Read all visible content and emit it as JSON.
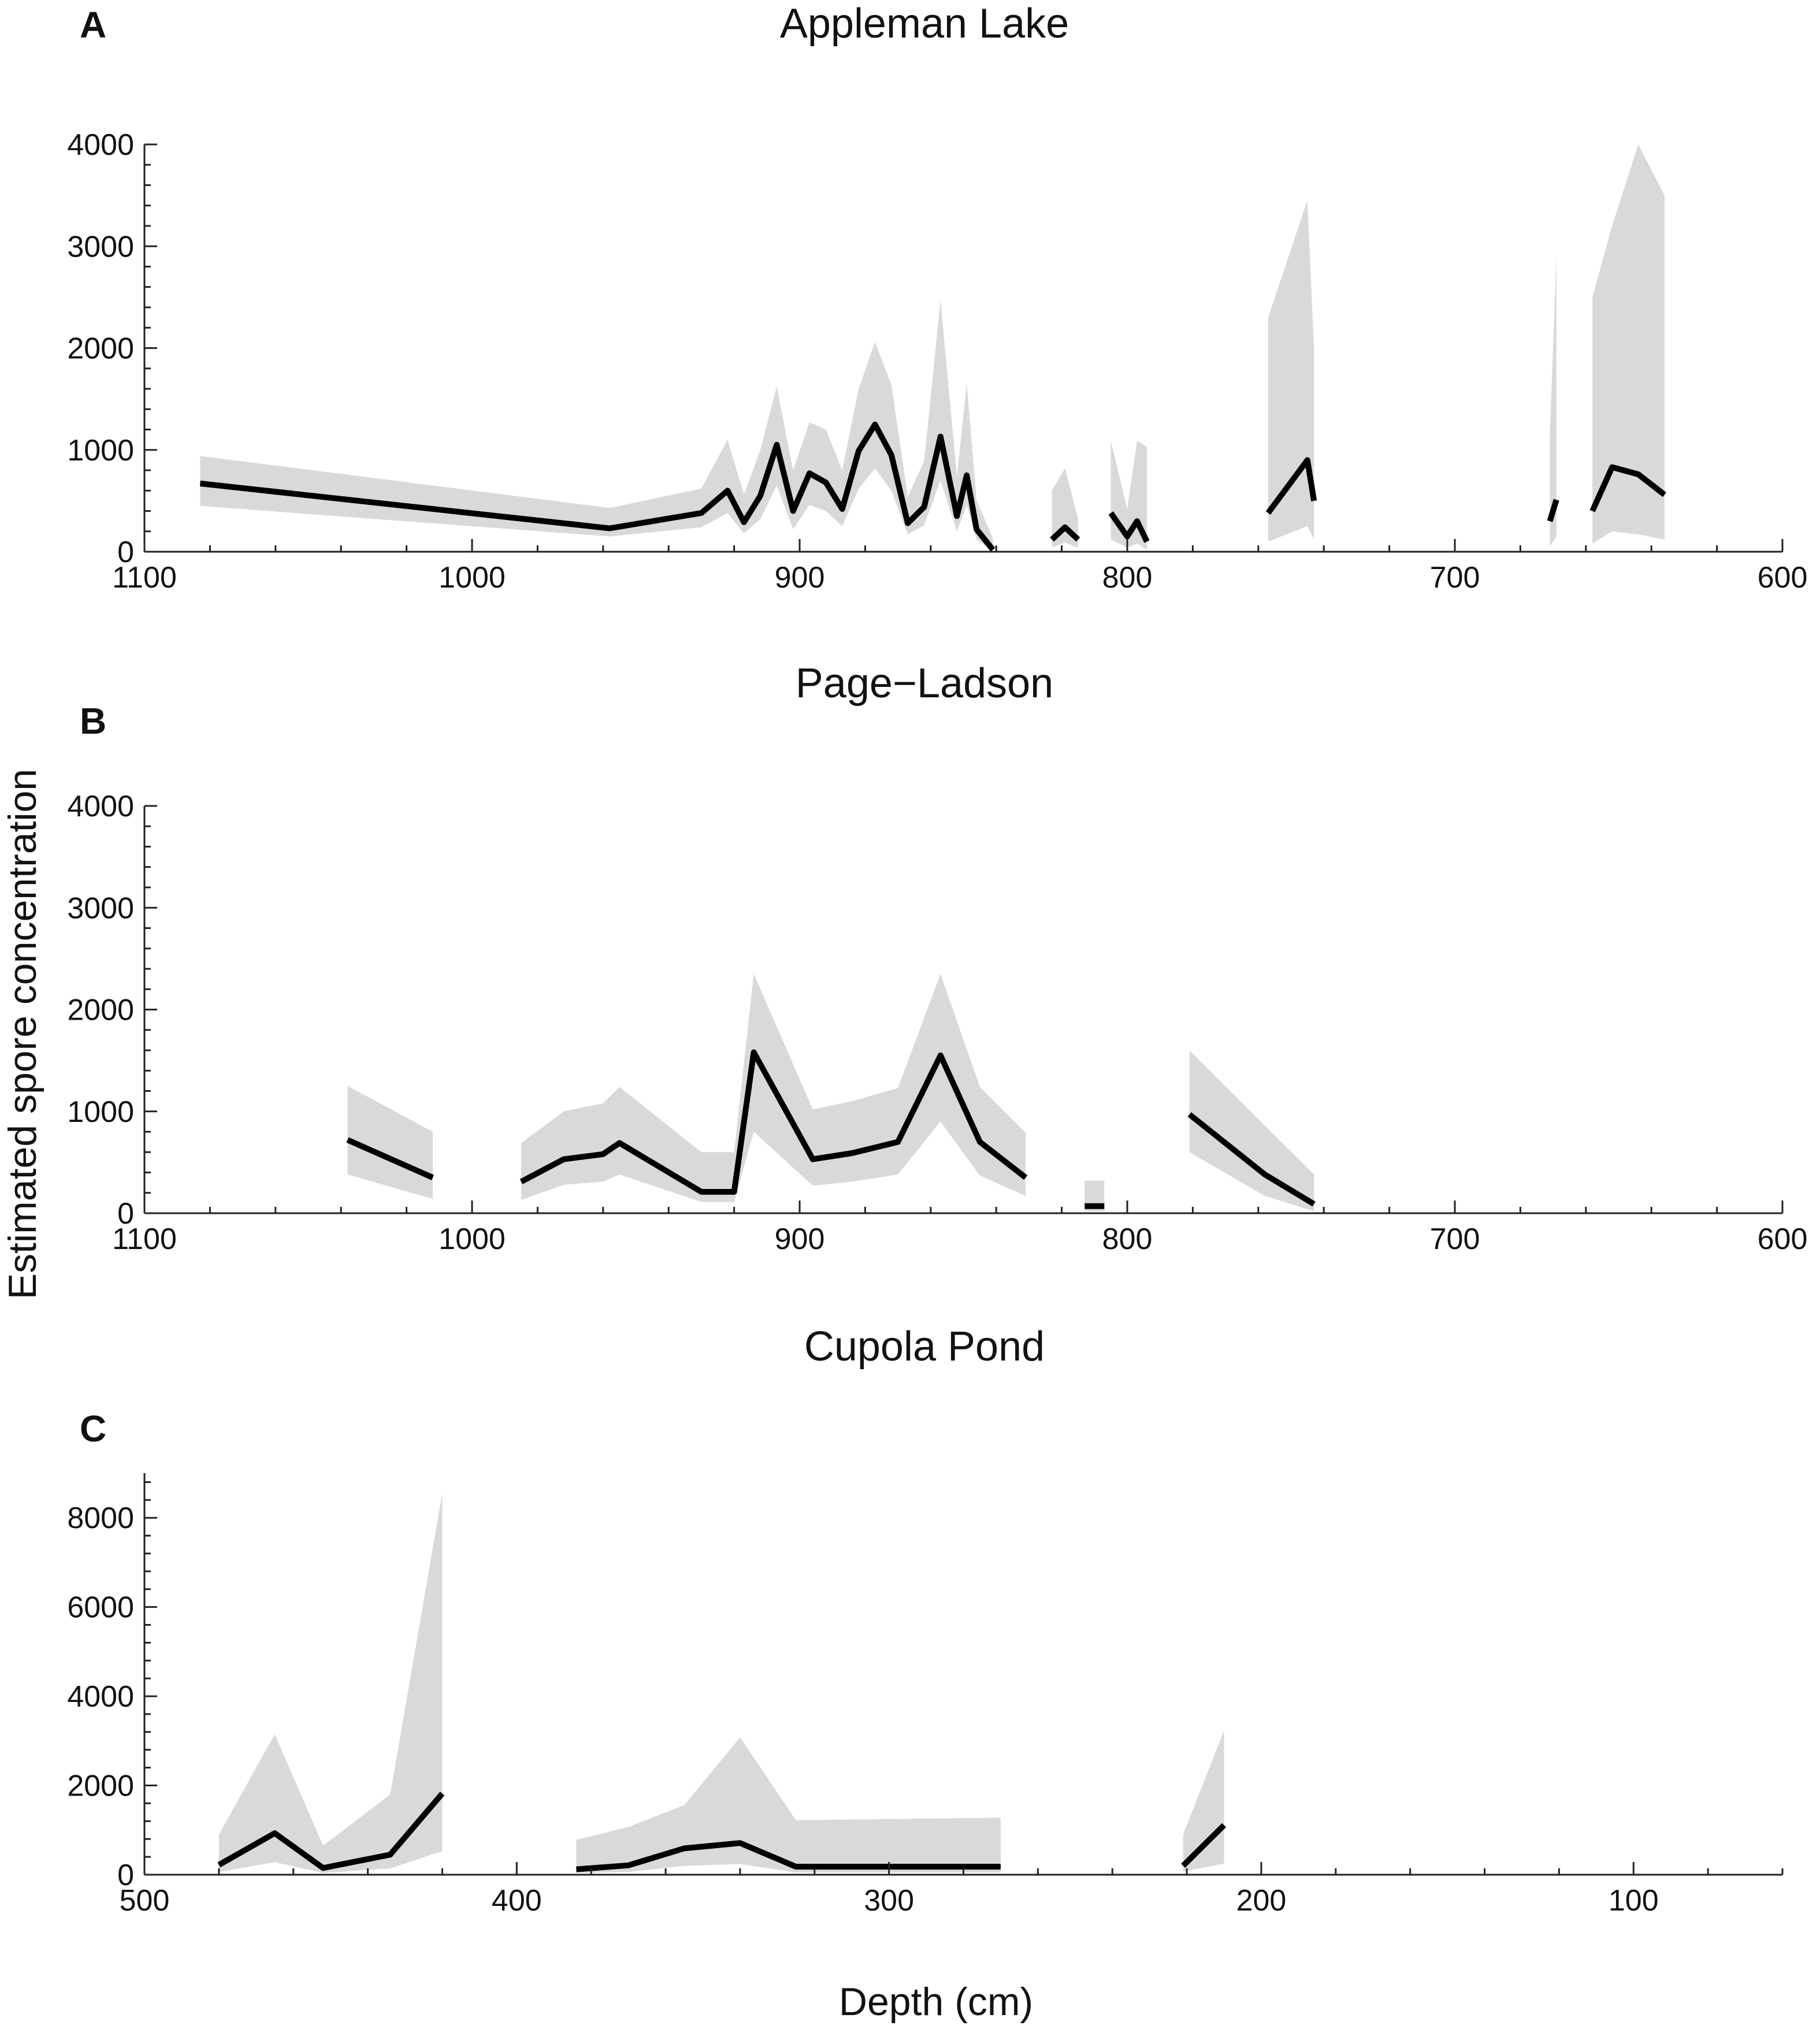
{
  "figure": {
    "ylabel": "Estimated spore concentration",
    "xlabel": "Depth (cm)"
  },
  "chart_data": [
    {
      "panel": "A",
      "type": "line",
      "title": "Appleman Lake",
      "xlim": [
        1100,
        600
      ],
      "ylim": [
        0,
        4000
      ],
      "xticks": [
        1100,
        1000,
        900,
        800,
        700,
        600
      ],
      "yticks": [
        0,
        1000,
        2000,
        3000,
        4000
      ],
      "segments": [
        {
          "x": [
            1083,
            958,
            930,
            922,
            917,
            912,
            907,
            902,
            897,
            892,
            887,
            882,
            877,
            872,
            867,
            862,
            857,
            852,
            849,
            846,
            841
          ],
          "y": [
            670,
            230,
            380,
            600,
            290,
            550,
            1050,
            400,
            770,
            680,
            420,
            990,
            1250,
            950,
            280,
            440,
            1130,
            350,
            750,
            220,
            20
          ],
          "lower": [
            450,
            150,
            240,
            380,
            180,
            320,
            650,
            220,
            460,
            400,
            250,
            620,
            820,
            600,
            170,
            260,
            700,
            200,
            460,
            120,
            0
          ],
          "upper": [
            940,
            430,
            620,
            1100,
            560,
            1000,
            1620,
            800,
            1270,
            1200,
            800,
            1600,
            2060,
            1640,
            540,
            890,
            2470,
            740,
            1650,
            510,
            130
          ]
        },
        {
          "x": [
            823,
            819,
            815
          ],
          "y": [
            120,
            240,
            120
          ],
          "lower": [
            40,
            90,
            40
          ],
          "upper": [
            600,
            820,
            320
          ]
        },
        {
          "x": [
            805,
            800,
            797,
            794
          ],
          "y": [
            380,
            150,
            300,
            100
          ],
          "lower": [
            120,
            40,
            80,
            20
          ],
          "upper": [
            1090,
            420,
            1090,
            1030
          ]
        },
        {
          "x": [
            757,
            745,
            743
          ],
          "y": [
            380,
            900,
            500
          ],
          "lower": [
            100,
            250,
            120
          ],
          "upper": [
            2300,
            3450,
            2000
          ]
        },
        {
          "x": [
            671,
            669
          ],
          "y": [
            300,
            510
          ],
          "lower": [
            50,
            150
          ],
          "upper": [
            1150,
            2900
          ]
        },
        {
          "x": [
            658,
            652,
            644,
            636
          ],
          "y": [
            400,
            830,
            760,
            560
          ],
          "lower": [
            80,
            200,
            170,
            120
          ],
          "upper": [
            2500,
            3200,
            4000,
            3500
          ]
        }
      ]
    },
    {
      "panel": "B",
      "type": "line",
      "title": "Page−Ladson",
      "xlim": [
        1100,
        600
      ],
      "ylim": [
        0,
        4000
      ],
      "xticks": [
        1100,
        1000,
        900,
        800,
        700,
        600
      ],
      "yticks": [
        0,
        1000,
        2000,
        3000,
        4000
      ],
      "segments": [
        {
          "x": [
            1038,
            1012
          ],
          "y": [
            720,
            350
          ],
          "lower": [
            380,
            140
          ],
          "upper": [
            1250,
            800
          ]
        },
        {
          "x": [
            985,
            972,
            960,
            955,
            930,
            920,
            914,
            896,
            884,
            870,
            857,
            845,
            831
          ],
          "y": [
            310,
            530,
            580,
            690,
            210,
            210,
            1580,
            530,
            590,
            700,
            1550,
            700,
            350
          ],
          "lower": [
            130,
            280,
            310,
            380,
            110,
            110,
            800,
            270,
            310,
            380,
            900,
            370,
            170
          ],
          "upper": [
            690,
            1000,
            1080,
            1240,
            600,
            600,
            2350,
            1020,
            1100,
            1230,
            2350,
            1240,
            790
          ]
        },
        {
          "x": [
            813,
            807
          ],
          "y": [
            70,
            70
          ],
          "lower": [
            20,
            20
          ],
          "upper": [
            320,
            320
          ]
        },
        {
          "x": [
            781,
            758,
            743
          ],
          "y": [
            970,
            380,
            90
          ],
          "lower": [
            600,
            170,
            20
          ],
          "upper": [
            1600,
            860,
            380
          ]
        }
      ]
    },
    {
      "panel": "C",
      "type": "line",
      "title": "Cupola Pond",
      "xlim": [
        500,
        60
      ],
      "ylim": [
        0,
        9000
      ],
      "xticks": [
        500,
        400,
        300,
        200,
        100
      ],
      "yticks": [
        0,
        2000,
        4000,
        6000,
        8000
      ],
      "segments": [
        {
          "x": [
            480,
            465,
            452,
            434,
            420
          ],
          "y": [
            220,
            930,
            150,
            450,
            1820
          ],
          "lower": [
            60,
            280,
            40,
            140,
            530
          ],
          "upper": [
            900,
            3150,
            650,
            1800,
            8550
          ]
        },
        {
          "x": [
            384,
            370,
            355,
            340,
            325,
            270
          ],
          "y": [
            120,
            210,
            590,
            710,
            180,
            180
          ],
          "lower": [
            40,
            60,
            200,
            240,
            50,
            50
          ],
          "upper": [
            780,
            1070,
            1560,
            3080,
            1220,
            1280
          ]
        },
        {
          "x": [
            221,
            210
          ],
          "y": [
            200,
            1110
          ],
          "lower": [
            70,
            250
          ],
          "upper": [
            900,
            3230
          ]
        }
      ]
    }
  ]
}
